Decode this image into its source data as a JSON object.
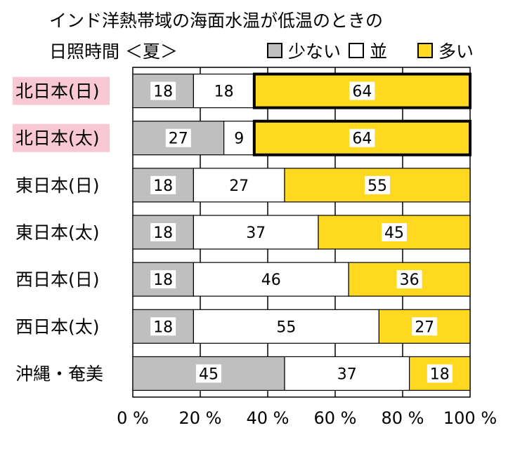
{
  "chart_data": {
    "type": "bar",
    "orientation": "horizontal",
    "stacked": true,
    "title_lines": [
      "インド洋熱帯域の海面水温が低温のときの",
      "日照時間 ＜夏＞"
    ],
    "categories": [
      "北日本(日)",
      "北日本(太)",
      "東日本(日)",
      "東日本(太)",
      "西日本(日)",
      "西日本(太)",
      "沖縄・奄美"
    ],
    "highlighted_categories": [
      "北日本(日)",
      "北日本(太)"
    ],
    "series": [
      {
        "name": "少ない",
        "color": "#bfbfbf",
        "values": [
          18,
          27,
          18,
          18,
          18,
          18,
          45
        ]
      },
      {
        "name": "並",
        "color": "#ffffff",
        "values": [
          18,
          9,
          27,
          37,
          46,
          55,
          37
        ]
      },
      {
        "name": "多い",
        "color": "#ffd820",
        "values": [
          64,
          64,
          55,
          45,
          36,
          27,
          18
        ]
      }
    ],
    "emphasized_segments": [
      {
        "category": "北日本(日)",
        "series": "多い"
      },
      {
        "category": "北日本(太)",
        "series": "多い"
      }
    ],
    "x_ticks": [
      "0 %",
      "20 %",
      "40 %",
      "60 %",
      "80 %",
      "100 %"
    ],
    "xlim": [
      0,
      100
    ],
    "grid": true,
    "legend_position": "top-right",
    "colors": {
      "highlight_label_bg": "#f8c8d4"
    }
  }
}
